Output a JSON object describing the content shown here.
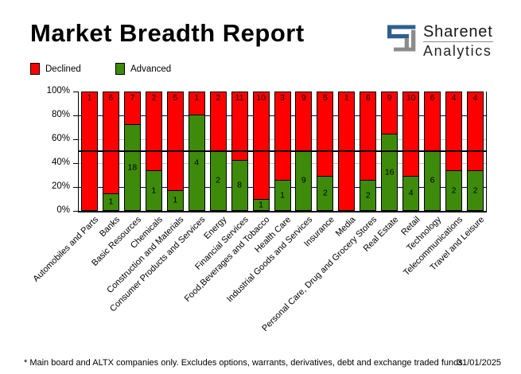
{
  "title": "Market Breadth Report",
  "logo": {
    "name": "Sharenet",
    "sub": "Analytics",
    "mark_blue": "#2e5f8c",
    "mark_gray": "#8c8c8c"
  },
  "legend": {
    "declined": {
      "label": "Declined",
      "color": "#ff0000"
    },
    "advanced": {
      "label": "Advanced",
      "color": "#3e8a0a"
    }
  },
  "footer": {
    "note": "* Main board and ALTX companies only. Excludes options, warrants, derivatives, debt and exchange traded funds",
    "date": "31/01/2025"
  },
  "chart_data": {
    "type": "bar",
    "stacked": true,
    "normalized": "100_percent_stacked",
    "title": "Market Breadth Report",
    "legend_position": "top-left",
    "categories": [
      "Automobiles and Parts",
      "Banks",
      "Basic Resources",
      "Chemicals",
      "Construction and Materials",
      "Consumer Products and Services",
      "Energy",
      "Financial Services",
      "Food,Beverages and Tobacco",
      "Health Care",
      "Industrial Goods and Services",
      "Insurance",
      "Media",
      "Personal Care, Drug and Grocery Stores",
      "Real Estate",
      "Retail",
      "Technology",
      "Telecommunications",
      "Travel and Leisure"
    ],
    "series": [
      {
        "name": "Declined",
        "color": "#ff0000",
        "values": [
          1,
          6,
          7,
          2,
          5,
          1,
          2,
          11,
          10,
          3,
          9,
          5,
          1,
          6,
          9,
          10,
          6,
          4,
          4
        ]
      },
      {
        "name": "Advanced",
        "color": "#3e8a0a",
        "values": [
          0,
          1,
          18,
          1,
          1,
          4,
          2,
          8,
          1,
          1,
          9,
          2,
          0,
          2,
          16,
          4,
          6,
          2,
          2
        ]
      }
    ],
    "value_labels": true,
    "y_axis": {
      "ticks": [
        "100%",
        "80%",
        "60%",
        "40%",
        "20%",
        "0%"
      ],
      "tick_values": [
        100,
        80,
        60,
        40,
        20,
        0
      ],
      "ylim": [
        0,
        100
      ]
    },
    "gridlines": {
      "navy_at": [
        80,
        20
      ],
      "navy_color": "#000080",
      "gray_at": [
        60,
        40
      ],
      "gray_color": "#c6c6c6",
      "reference_at": 50,
      "reference_color": "#000000"
    }
  }
}
